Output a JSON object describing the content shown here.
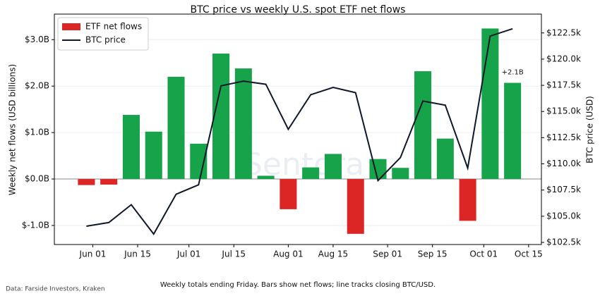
{
  "chart_data": {
    "type": "bar_line",
    "title": "BTC price vs weekly U.S. spot ETF net flows",
    "ylabel": "Weekly net flows (USD billions)",
    "y2label": "BTC price (USD)",
    "x": [
      "May 30",
      "Jun 06",
      "Jun 13",
      "Jun 20",
      "Jun 27",
      "Jul 04",
      "Jul 11",
      "Jul 18",
      "Jul 25",
      "Aug 01",
      "Aug 08",
      "Aug 15",
      "Aug 22",
      "Aug 29",
      "Sep 05",
      "Sep 12",
      "Sep 19",
      "Sep 26",
      "Oct 03",
      "Oct 10"
    ],
    "xlim": [
      "May 20",
      "Oct 19"
    ],
    "xticks": [
      "Jun 01",
      "Jun 15",
      "Jul 01",
      "Jul 15",
      "Aug 01",
      "Aug 15",
      "Sep 01",
      "Sep 15",
      "Oct 01",
      "Oct 15"
    ],
    "series": [
      {
        "name": "ETF net flows",
        "kind": "bar",
        "color": "#16a34a",
        "negative_color": "#dc2626",
        "values": [
          -0.13,
          -0.12,
          1.38,
          1.02,
          2.2,
          0.76,
          2.7,
          2.38,
          0.07,
          -0.65,
          0.25,
          0.54,
          -1.18,
          0.43,
          0.24,
          2.32,
          0.87,
          -0.9,
          3.24,
          2.07
        ]
      },
      {
        "name": "BTC price",
        "kind": "line",
        "axis": "y2",
        "color": "#0f172a",
        "values": [
          104.05,
          104.4,
          106.1,
          103.3,
          107.1,
          108.0,
          117.45,
          117.9,
          117.6,
          113.3,
          116.6,
          117.3,
          116.8,
          108.4,
          110.6,
          116.0,
          115.6,
          109.6,
          122.2,
          122.9
        ]
      }
    ],
    "ylim": [
      -1.41,
      3.55
    ],
    "yticks": [
      {
        "value": -1,
        "label": "$-1.0B"
      },
      {
        "value": 0,
        "label": "$0.0B"
      },
      {
        "value": 1,
        "label": "$1.0B"
      },
      {
        "value": 2,
        "label": "$2.0B"
      },
      {
        "value": 3,
        "label": "$3.0B"
      }
    ],
    "y2lim": [
      102.3,
      124.3
    ],
    "y2ticks": [
      {
        "value": 102.5,
        "label": "$102.5k"
      },
      {
        "value": 105,
        "label": "$105.0k"
      },
      {
        "value": 107.5,
        "label": "$107.5k"
      },
      {
        "value": 110,
        "label": "$110.0k"
      },
      {
        "value": 112.5,
        "label": "$112.5k"
      },
      {
        "value": 115,
        "label": "$115.0k"
      },
      {
        "value": 117.5,
        "label": "$117.5k"
      },
      {
        "value": 120,
        "label": "$120.0k"
      },
      {
        "value": 122.5,
        "label": "$122.5k"
      }
    ],
    "grid": true,
    "legend": "upper-left",
    "annotation": "+2.1B",
    "watermark": "Sentora",
    "caption": "Weekly totals ending Friday. Bars show net flows; line tracks closing BTC/USD.",
    "source": "Data: Farside Investors, Kraken"
  }
}
